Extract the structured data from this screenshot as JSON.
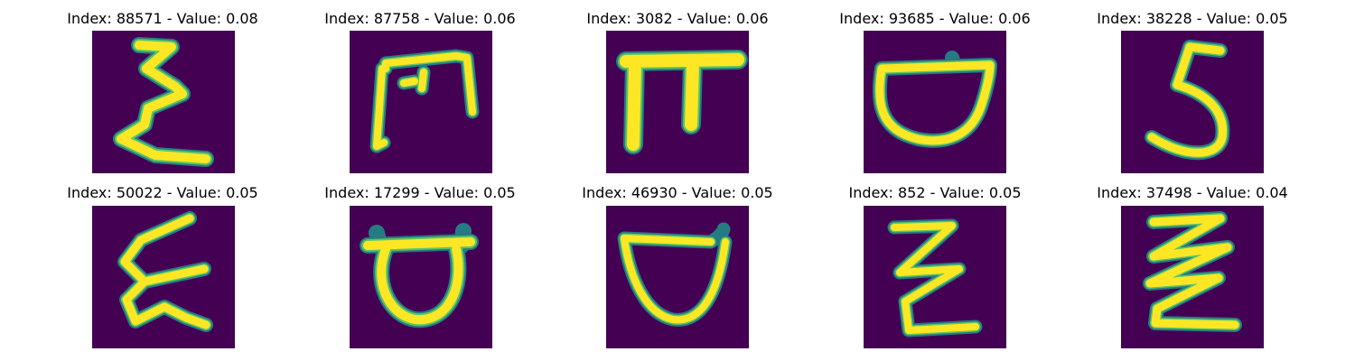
{
  "panels": [
    {
      "index": "88571",
      "value": "0.08",
      "caption": "Index: 88571 - Value: 0.08",
      "shape": "epsilon-like"
    },
    {
      "index": "87758",
      "value": "0.06",
      "caption": "Index: 87758 - Value: 0.06",
      "shape": "m-bracket"
    },
    {
      "index": "3082",
      "value": "0.06",
      "caption": "Index: 3082 - Value: 0.06",
      "shape": "pi-like"
    },
    {
      "index": "93685",
      "value": "0.06",
      "caption": "Index: 93685 - Value: 0.06",
      "shape": "bowl"
    },
    {
      "index": "38228",
      "value": "0.05",
      "caption": "Index: 38228 - Value: 0.05",
      "shape": "five-like"
    },
    {
      "index": "50022",
      "value": "0.05",
      "caption": "Index: 50022 - Value: 0.05",
      "shape": "epsilon-like"
    },
    {
      "index": "17299",
      "value": "0.05",
      "caption": "Index: 17299 - Value: 0.05",
      "shape": "horned-bowl"
    },
    {
      "index": "46930",
      "value": "0.05",
      "caption": "Index: 46930 - Value: 0.05",
      "shape": "bowl"
    },
    {
      "index": "852",
      "value": "0.05",
      "caption": "Index: 852 - Value: 0.05",
      "shape": "zigzag"
    },
    {
      "index": "37498",
      "value": "0.04",
      "caption": "Index: 37498 - Value: 0.04",
      "shape": "zigzag"
    }
  ],
  "colors": {
    "background": "#440154",
    "halo": "#21918c",
    "mid": "#5ec962",
    "core": "#fde725"
  }
}
